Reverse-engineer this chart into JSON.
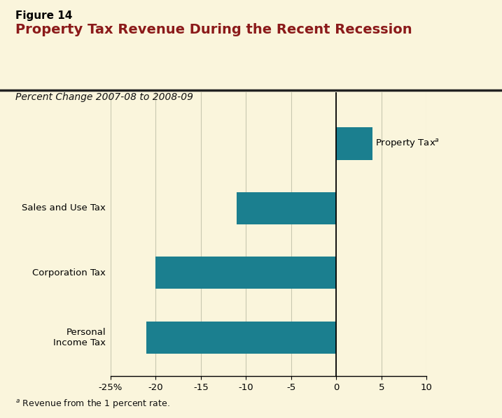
{
  "figure_label": "Figure 14",
  "title": "Property Tax Revenue During the Recent Recession",
  "subtitle": "Percent Change 2007-08 to 2008-09",
  "footnote_super": "a",
  "footnote_text": " Revenue from the 1 percent rate.",
  "categories": [
    "Personal\nIncome Tax",
    "Corporation Tax",
    "Sales and Use Tax",
    "Property Tax"
  ],
  "bar_labels": [
    "",
    "",
    "Sales and Use Tax",
    ""
  ],
  "values": [
    -21,
    -20,
    -11,
    4
  ],
  "bar_color": "#1b7f8f",
  "background_color_header": "#f5f0e8",
  "background_color_chart": "#faf5dc",
  "title_color": "#8b1a1a",
  "figure_label_color": "#000000",
  "xlim": [
    -25,
    10
  ],
  "xticks": [
    -25,
    -20,
    -15,
    -10,
    -5,
    0,
    5,
    10
  ],
  "xticklabels": [
    "-25%",
    "-20",
    "-15",
    "-10",
    "-5",
    "0",
    "5",
    "10"
  ],
  "grid_color": "#c8c8b0",
  "ytick_labels_left": [
    "Personal\nIncome Tax",
    "Corporation Tax",
    "",
    ""
  ],
  "bar_height": 0.5
}
